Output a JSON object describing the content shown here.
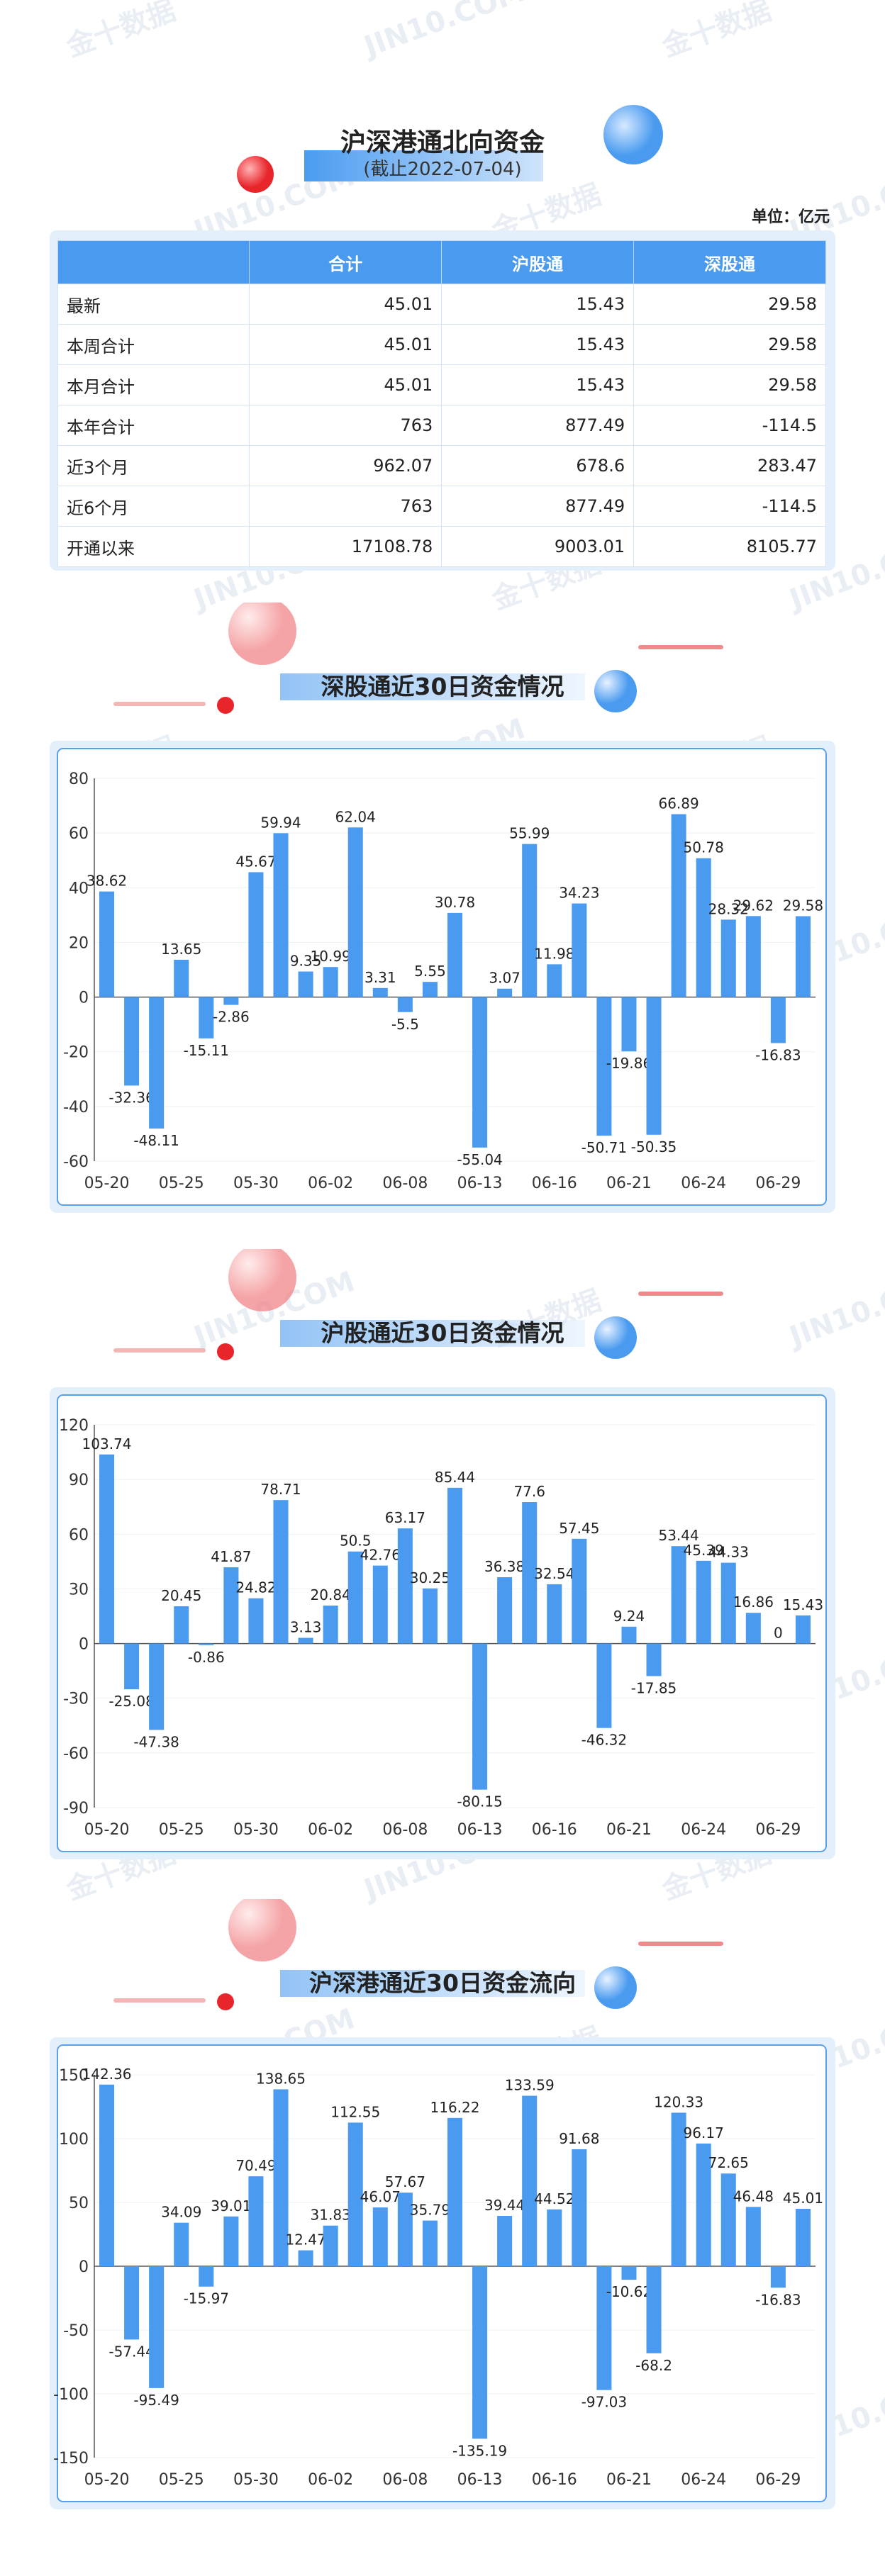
{
  "header": {
    "title": "沪深港通北向资金",
    "subtitle": "(截止2022-07-04)",
    "unit": "单位：亿元"
  },
  "watermark": [
    "金十数据",
    "JIN10.COM"
  ],
  "table": {
    "columns": [
      "",
      "合计",
      "沪股通",
      "深股通"
    ],
    "rows": [
      [
        "最新",
        "45.01",
        "15.43",
        "29.58"
      ],
      [
        "本周合计",
        "45.01",
        "15.43",
        "29.58"
      ],
      [
        "本月合计",
        "45.01",
        "15.43",
        "29.58"
      ],
      [
        "本年合计",
        "763",
        "877.49",
        "-114.5"
      ],
      [
        "近3个月",
        "962.07",
        "678.6",
        "283.47"
      ],
      [
        "近6个月",
        "763",
        "877.49",
        "-114.5"
      ],
      [
        "开通以来",
        "17108.78",
        "9003.01",
        "8105.77"
      ]
    ]
  },
  "chart_data": [
    {
      "type": "bar",
      "title": "深股通近30日资金情况",
      "color": "#4a9bf0",
      "grid": true,
      "categories": [
        "05-20",
        null,
        null,
        "05-25",
        null,
        null,
        "05-30",
        null,
        null,
        "06-02",
        null,
        null,
        "06-08",
        null,
        null,
        "06-13",
        null,
        null,
        "06-16",
        null,
        null,
        "06-21",
        null,
        null,
        "06-24",
        null,
        null,
        "06-29",
        null
      ],
      "values": [
        38.62,
        -32.36,
        -48.11,
        13.65,
        -15.11,
        -2.86,
        45.67,
        59.94,
        9.35,
        10.99,
        62.04,
        3.31,
        -5.5,
        5.55,
        30.78,
        -55.04,
        3.07,
        55.99,
        11.98,
        34.23,
        -50.71,
        -19.86,
        -50.35,
        66.89,
        50.78,
        28.32,
        29.62,
        -16.83,
        29.58
      ],
      "ylim": [
        -60,
        80
      ],
      "yticks": [
        -60,
        -40,
        -20,
        0,
        20,
        40,
        60,
        80
      ]
    },
    {
      "type": "bar",
      "title": "沪股通近30日资金情况",
      "color": "#4a9bf0",
      "grid": true,
      "categories": [
        "05-20",
        null,
        null,
        "05-25",
        null,
        null,
        "05-30",
        null,
        null,
        "06-02",
        null,
        null,
        "06-08",
        null,
        null,
        "06-13",
        null,
        null,
        "06-16",
        null,
        null,
        "06-21",
        null,
        null,
        "06-24",
        null,
        null,
        "06-29",
        null
      ],
      "values": [
        103.74,
        -25.08,
        -47.38,
        20.45,
        -0.86,
        41.87,
        24.82,
        78.71,
        3.13,
        20.84,
        50.5,
        42.76,
        63.17,
        30.25,
        85.44,
        -80.15,
        36.38,
        77.6,
        32.54,
        57.45,
        -46.32,
        9.24,
        -17.85,
        53.44,
        45.39,
        44.33,
        16.86,
        0,
        15.43
      ],
      "ylim": [
        -90,
        120
      ],
      "yticks": [
        -90,
        -60,
        -30,
        0,
        30,
        60,
        90,
        120
      ]
    },
    {
      "type": "bar",
      "title": "沪深港通近30日资金流向",
      "color": "#4a9bf0",
      "grid": true,
      "categories": [
        "05-20",
        null,
        null,
        "05-25",
        null,
        null,
        "05-30",
        null,
        null,
        "06-02",
        null,
        null,
        "06-08",
        null,
        null,
        "06-13",
        null,
        null,
        "06-16",
        null,
        null,
        "06-21",
        null,
        null,
        "06-24",
        null,
        null,
        "06-29",
        null
      ],
      "values": [
        142.36,
        -57.44,
        -95.49,
        34.09,
        -15.97,
        39.01,
        70.49,
        138.65,
        12.47,
        31.83,
        112.55,
        46.07,
        57.67,
        35.79,
        116.22,
        -135.19,
        39.44,
        133.59,
        44.52,
        91.68,
        -97.03,
        -10.62,
        -68.2,
        120.33,
        96.17,
        72.65,
        46.48,
        -16.83,
        45.01
      ],
      "ylim": [
        -150,
        150
      ],
      "yticks": [
        -150,
        -100,
        -50,
        0,
        50,
        100,
        150
      ]
    }
  ]
}
